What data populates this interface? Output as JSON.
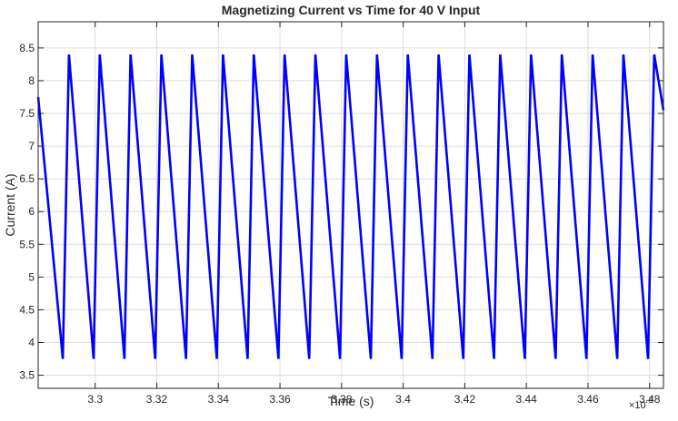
{
  "chart_data": {
    "type": "line",
    "title": "Magnetizing Current vs Time for 40 V Input",
    "xlabel": "Time (s)",
    "ylabel": "Current (A)",
    "x_exponent_label": "×10",
    "x_exponent_power": "-3",
    "xlim": [
      3.2815,
      3.4845
    ],
    "ylim": [
      3.3,
      8.9
    ],
    "grid": true,
    "line_color": "#0000FF",
    "x_ticks": [
      3.3,
      3.32,
      3.34,
      3.36,
      3.38,
      3.4,
      3.42,
      3.44,
      3.46,
      3.48
    ],
    "x_tick_labels": [
      "3.3",
      "3.32",
      "3.34",
      "3.36",
      "3.38",
      "3.4",
      "3.42",
      "3.44",
      "3.46",
      "3.48"
    ],
    "y_ticks": [
      3.5,
      4,
      4.5,
      5,
      5.5,
      6,
      6.5,
      7,
      7.5,
      8,
      8.5
    ],
    "y_tick_labels": [
      "3.5",
      "4",
      "4.5",
      "5",
      "5.5",
      "6",
      "6.5",
      "7",
      "7.5",
      "8",
      "8.5"
    ],
    "series": [
      {
        "x": [
          3.2815,
          3.2895,
          3.2915,
          3.2995,
          3.3015,
          3.3095,
          3.3115,
          3.3195,
          3.3215,
          3.3295,
          3.3315,
          3.3395,
          3.3415,
          3.3495,
          3.3515,
          3.3595,
          3.3615,
          3.3695,
          3.3715,
          3.3795,
          3.3815,
          3.3895,
          3.3915,
          3.3995,
          3.4015,
          3.4095,
          3.4115,
          3.4195,
          3.4215,
          3.4295,
          3.4315,
          3.4395,
          3.4415,
          3.4495,
          3.4515,
          3.4595,
          3.4615,
          3.4695,
          3.4715,
          3.4795,
          3.4815,
          3.4845
        ],
        "y": [
          7.75,
          3.75,
          8.4,
          3.75,
          8.4,
          3.75,
          8.4,
          3.75,
          8.4,
          3.75,
          8.4,
          3.75,
          8.4,
          3.75,
          8.4,
          3.75,
          8.4,
          3.75,
          8.4,
          3.75,
          8.4,
          3.75,
          8.4,
          3.75,
          8.4,
          3.75,
          8.4,
          3.75,
          8.4,
          3.75,
          8.4,
          3.75,
          8.4,
          3.75,
          8.4,
          3.75,
          8.4,
          3.75,
          8.4,
          3.75,
          8.4,
          7.55
        ]
      }
    ]
  }
}
